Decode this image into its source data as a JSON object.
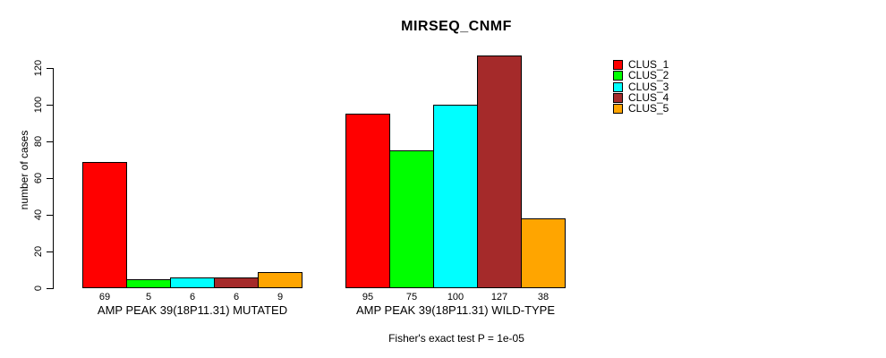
{
  "chart_data": {
    "type": "bar",
    "title": "MIRSEQ_CNMF",
    "ylabel": "number of cases",
    "ylim": [
      0,
      127
    ],
    "yticks": [
      0,
      20,
      40,
      60,
      80,
      100,
      120
    ],
    "grid": false,
    "legend_position": "right",
    "series": [
      {
        "name": "CLUS_1",
        "color": "#FF0000"
      },
      {
        "name": "CLUS_2",
        "color": "#00FF00"
      },
      {
        "name": "CLUS_3",
        "color": "#00FFFF"
      },
      {
        "name": "CLUS_4",
        "color": "#A52A2A"
      },
      {
        "name": "CLUS_5",
        "color": "#FFA500"
      }
    ],
    "groups": [
      {
        "label": "AMP PEAK 39(18P11.31) MUTATED",
        "values": [
          69,
          5,
          6,
          6,
          9
        ]
      },
      {
        "label": "AMP PEAK 39(18P11.31) WILD-TYPE",
        "values": [
          95,
          75,
          100,
          127,
          38
        ]
      }
    ],
    "annotation": "Fisher's exact test P = 1e-05"
  }
}
